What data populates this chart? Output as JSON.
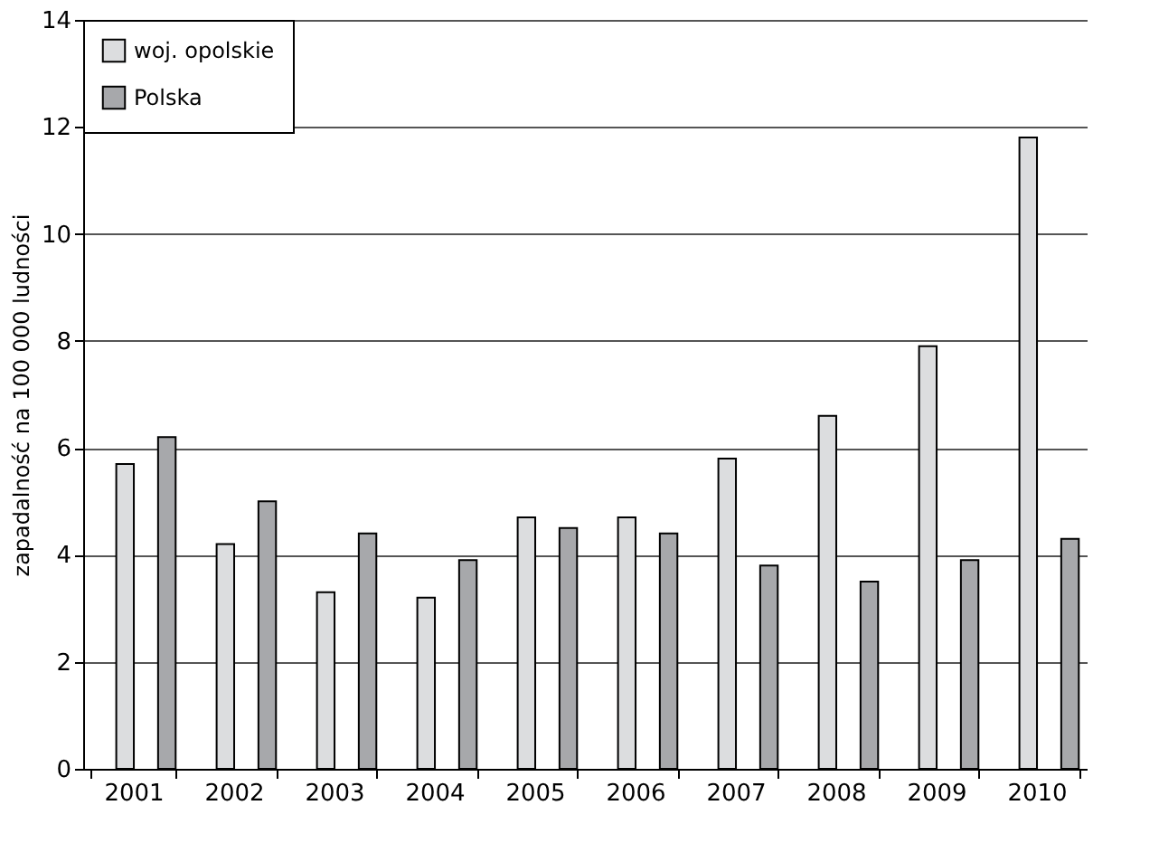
{
  "chart_data": {
    "type": "bar",
    "ylabel": "zapadalność na 100 000 ludności",
    "categories": [
      "2001",
      "2002",
      "2003",
      "2004",
      "2005",
      "2006",
      "2007",
      "2008",
      "2009",
      "2010"
    ],
    "series": [
      {
        "name": "woj. opolskie",
        "color": "#dcdddf",
        "values": [
          5.7,
          4.2,
          3.3,
          3.2,
          4.7,
          4.7,
          5.8,
          6.6,
          7.9,
          11.8
        ]
      },
      {
        "name": "Polska",
        "color": "#a7a8ab",
        "values": [
          6.2,
          5.0,
          4.4,
          3.9,
          4.5,
          4.4,
          3.8,
          3.5,
          3.9,
          4.3
        ]
      }
    ],
    "ylim": [
      0,
      14
    ],
    "yticks": [
      0,
      2,
      4,
      6,
      8,
      10,
      12,
      14
    ],
    "grid": "y",
    "legend": "top left"
  }
}
